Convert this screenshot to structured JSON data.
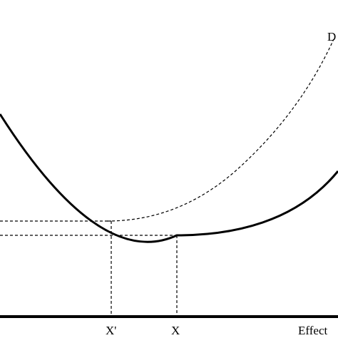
{
  "labels": {
    "curve_label": "D",
    "x_prime": "X'",
    "x": "X",
    "axis_label": "Effect"
  },
  "colors": {
    "line": "#000000",
    "background": "#ffffff"
  }
}
